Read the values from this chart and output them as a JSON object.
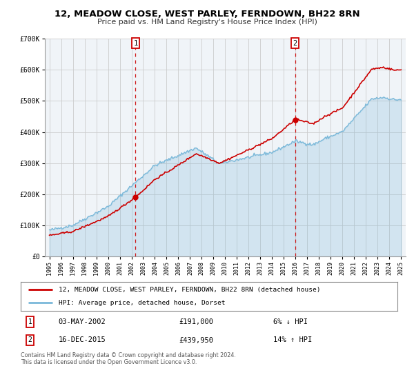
{
  "title": "12, MEADOW CLOSE, WEST PARLEY, FERNDOWN, BH22 8RN",
  "subtitle": "Price paid vs. HM Land Registry's House Price Index (HPI)",
  "legend_line1": "12, MEADOW CLOSE, WEST PARLEY, FERNDOWN, BH22 8RN (detached house)",
  "legend_line2": "HPI: Average price, detached house, Dorset",
  "annotation1_date": "03-MAY-2002",
  "annotation1_price": "£191,000",
  "annotation1_hpi": "6% ↓ HPI",
  "annotation1_year": 2002.35,
  "annotation1_value": 191000,
  "annotation2_date": "16-DEC-2015",
  "annotation2_price": "£439,950",
  "annotation2_hpi": "14% ↑ HPI",
  "annotation2_year": 2015.96,
  "annotation2_value": 439950,
  "hpi_color": "#7ab8d9",
  "price_color": "#cc0000",
  "plot_bg": "#f0f4f8",
  "grid_color": "#cccccc",
  "footer": "Contains HM Land Registry data © Crown copyright and database right 2024.\nThis data is licensed under the Open Government Licence v3.0.",
  "ylim": [
    0,
    700000
  ],
  "yticks": [
    0,
    100000,
    200000,
    300000,
    400000,
    500000,
    600000,
    700000
  ],
  "ytick_labels": [
    "£0",
    "£100K",
    "£200K",
    "£300K",
    "£400K",
    "£500K",
    "£600K",
    "£700K"
  ],
  "xlim_left": 1994.6,
  "xlim_right": 2025.4
}
